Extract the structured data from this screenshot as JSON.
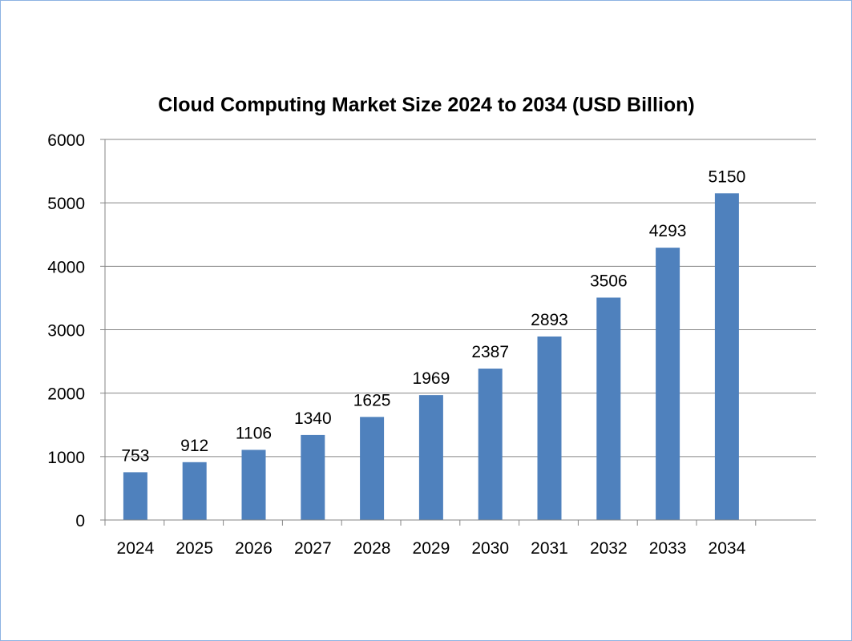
{
  "chart_data": {
    "type": "bar",
    "title": "Cloud Computing Market Size 2024 to 2034 (USD Billion)",
    "xlabel": "",
    "ylabel": "",
    "categories": [
      "2024",
      "2025",
      "2026",
      "2027",
      "2028",
      "2029",
      "2030",
      "2031",
      "2032",
      "2033",
      "2034"
    ],
    "values": [
      753,
      912,
      1106,
      1340,
      1625,
      1969,
      2387,
      2893,
      3506,
      4293,
      5150
    ],
    "ylim": [
      0,
      6000
    ],
    "yticks": [
      0,
      1000,
      2000,
      3000,
      4000,
      5000,
      6000
    ],
    "grid": "horizontal",
    "legend": "none",
    "colors": {
      "bar": "#4f81bd",
      "grid": "#868686",
      "axis": "#868686",
      "border": "#8db3e2"
    }
  }
}
